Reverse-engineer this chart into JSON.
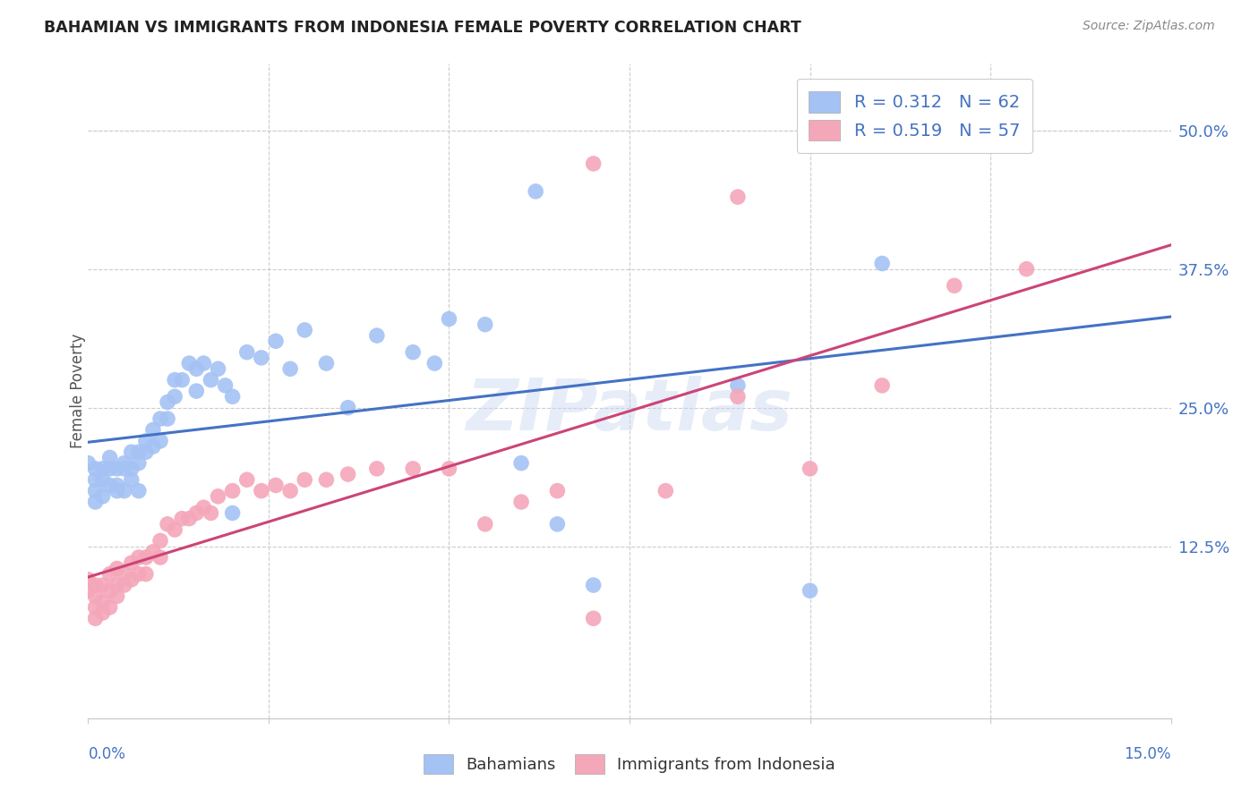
{
  "title": "BAHAMIAN VS IMMIGRANTS FROM INDONESIA FEMALE POVERTY CORRELATION CHART",
  "source": "Source: ZipAtlas.com",
  "ylabel": "Female Poverty",
  "ytick_values": [
    0.125,
    0.25,
    0.375,
    0.5
  ],
  "ytick_labels": [
    "12.5%",
    "25.0%",
    "37.5%",
    "50.0%"
  ],
  "xlim": [
    0.0,
    0.15
  ],
  "ylim": [
    -0.03,
    0.56
  ],
  "blue_scatter_color": "#a4c2f4",
  "pink_scatter_color": "#f4a7b9",
  "blue_line_color": "#4472c4",
  "pink_line_color": "#cc4477",
  "legend_text_color": "#4472c4",
  "watermark": "ZIPatlas",
  "watermark_color": "#c8d8f0",
  "title_color": "#222222",
  "source_color": "#888888",
  "axis_label_color": "#4472c4",
  "ylabel_color": "#555555",
  "grid_color": "#cccccc",
  "bahamian_x": [
    0.0,
    0.001,
    0.001,
    0.001,
    0.001,
    0.002,
    0.002,
    0.002,
    0.003,
    0.003,
    0.003,
    0.004,
    0.004,
    0.004,
    0.005,
    0.005,
    0.005,
    0.006,
    0.006,
    0.006,
    0.007,
    0.007,
    0.007,
    0.008,
    0.008,
    0.009,
    0.009,
    0.01,
    0.01,
    0.011,
    0.011,
    0.012,
    0.012,
    0.013,
    0.014,
    0.015,
    0.015,
    0.016,
    0.017,
    0.018,
    0.019,
    0.02,
    0.022,
    0.024,
    0.026,
    0.028,
    0.03,
    0.033,
    0.036,
    0.04,
    0.045,
    0.05,
    0.055,
    0.062,
    0.048,
    0.06,
    0.065,
    0.07,
    0.09,
    0.1,
    0.11,
    0.02
  ],
  "bahamian_y": [
    0.2,
    0.195,
    0.185,
    0.175,
    0.165,
    0.195,
    0.185,
    0.17,
    0.205,
    0.195,
    0.18,
    0.195,
    0.18,
    0.175,
    0.2,
    0.195,
    0.175,
    0.21,
    0.195,
    0.185,
    0.21,
    0.2,
    0.175,
    0.22,
    0.21,
    0.23,
    0.215,
    0.24,
    0.22,
    0.255,
    0.24,
    0.275,
    0.26,
    0.275,
    0.29,
    0.285,
    0.265,
    0.29,
    0.275,
    0.285,
    0.27,
    0.26,
    0.3,
    0.295,
    0.31,
    0.285,
    0.32,
    0.29,
    0.25,
    0.315,
    0.3,
    0.33,
    0.325,
    0.445,
    0.29,
    0.2,
    0.145,
    0.09,
    0.27,
    0.085,
    0.38,
    0.155
  ],
  "indonesia_x": [
    0.0,
    0.0,
    0.001,
    0.001,
    0.001,
    0.001,
    0.002,
    0.002,
    0.002,
    0.003,
    0.003,
    0.003,
    0.004,
    0.004,
    0.004,
    0.005,
    0.005,
    0.006,
    0.006,
    0.007,
    0.007,
    0.008,
    0.008,
    0.009,
    0.01,
    0.01,
    0.011,
    0.012,
    0.013,
    0.014,
    0.015,
    0.016,
    0.017,
    0.018,
    0.02,
    0.022,
    0.024,
    0.026,
    0.028,
    0.03,
    0.033,
    0.036,
    0.04,
    0.045,
    0.05,
    0.055,
    0.06,
    0.065,
    0.07,
    0.08,
    0.09,
    0.1,
    0.11,
    0.12,
    0.13,
    0.09,
    0.07
  ],
  "indonesia_y": [
    0.095,
    0.085,
    0.09,
    0.08,
    0.07,
    0.06,
    0.09,
    0.075,
    0.065,
    0.1,
    0.085,
    0.07,
    0.105,
    0.09,
    0.08,
    0.1,
    0.09,
    0.11,
    0.095,
    0.115,
    0.1,
    0.115,
    0.1,
    0.12,
    0.13,
    0.115,
    0.145,
    0.14,
    0.15,
    0.15,
    0.155,
    0.16,
    0.155,
    0.17,
    0.175,
    0.185,
    0.175,
    0.18,
    0.175,
    0.185,
    0.185,
    0.19,
    0.195,
    0.195,
    0.195,
    0.145,
    0.165,
    0.175,
    0.06,
    0.175,
    0.26,
    0.195,
    0.27,
    0.36,
    0.375,
    0.44,
    0.47
  ]
}
